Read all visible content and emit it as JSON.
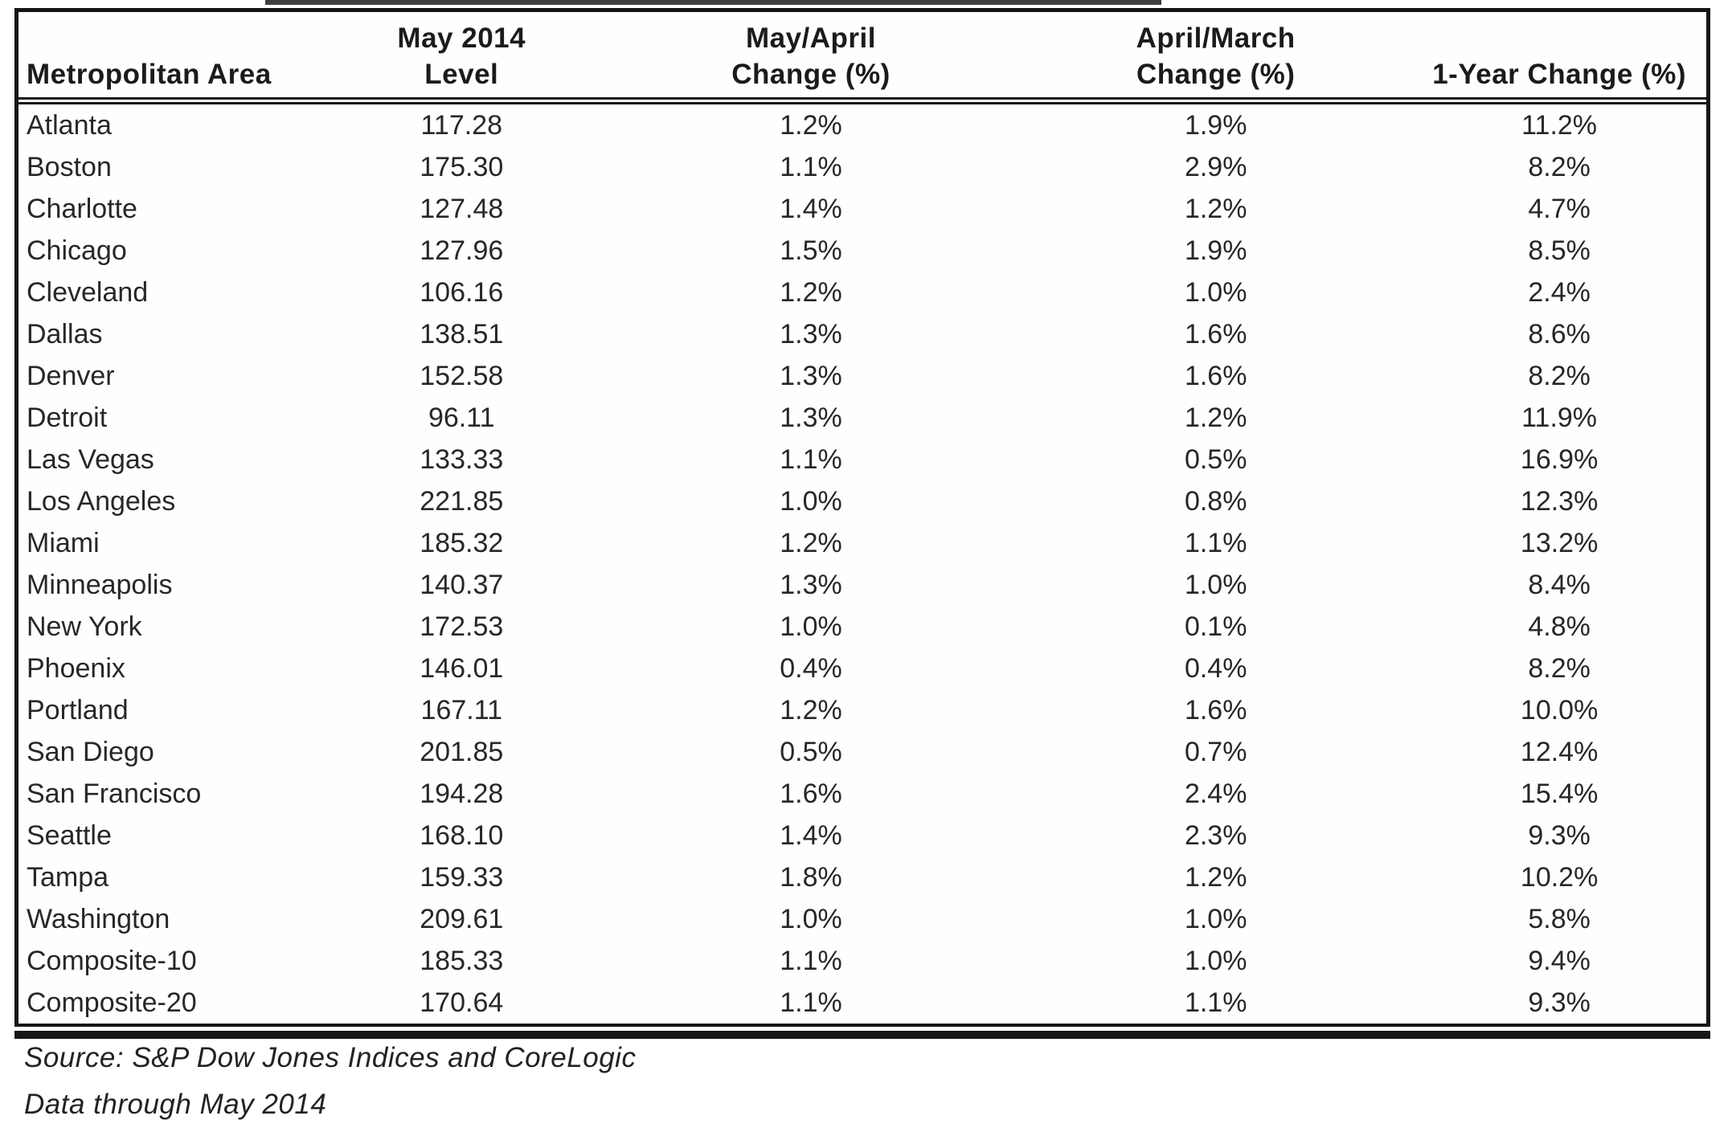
{
  "table": {
    "columns": [
      {
        "id": "metropolitan-area",
        "line1": "Metropolitan Area",
        "line2": ""
      },
      {
        "id": "level",
        "line1": "May 2014",
        "line2": "Level"
      },
      {
        "id": "may-april-change",
        "line1": "May/April",
        "line2": "Change (%)"
      },
      {
        "id": "april-march-change",
        "line1": "April/March",
        "line2": "Change (%)"
      },
      {
        "id": "one-year-change",
        "line1": "1-Year Change (%)",
        "line2": ""
      }
    ],
    "rows": [
      [
        "Atlanta",
        "117.28",
        "1.2%",
        "1.9%",
        "11.2%"
      ],
      [
        "Boston",
        "175.30",
        "1.1%",
        "2.9%",
        "8.2%"
      ],
      [
        "Charlotte",
        "127.48",
        "1.4%",
        "1.2%",
        "4.7%"
      ],
      [
        "Chicago",
        "127.96",
        "1.5%",
        "1.9%",
        "8.5%"
      ],
      [
        "Cleveland",
        "106.16",
        "1.2%",
        "1.0%",
        "2.4%"
      ],
      [
        "Dallas",
        "138.51",
        "1.3%",
        "1.6%",
        "8.6%"
      ],
      [
        "Denver",
        "152.58",
        "1.3%",
        "1.6%",
        "8.2%"
      ],
      [
        "Detroit",
        "96.11",
        "1.3%",
        "1.2%",
        "11.9%"
      ],
      [
        "Las Vegas",
        "133.33",
        "1.1%",
        "0.5%",
        "16.9%"
      ],
      [
        "Los Angeles",
        "221.85",
        "1.0%",
        "0.8%",
        "12.3%"
      ],
      [
        "Miami",
        "185.32",
        "1.2%",
        "1.1%",
        "13.2%"
      ],
      [
        "Minneapolis",
        "140.37",
        "1.3%",
        "1.0%",
        "8.4%"
      ],
      [
        "New York",
        "172.53",
        "1.0%",
        "0.1%",
        "4.8%"
      ],
      [
        "Phoenix",
        "146.01",
        "0.4%",
        "0.4%",
        "8.2%"
      ],
      [
        "Portland",
        "167.11",
        "1.2%",
        "1.6%",
        "10.0%"
      ],
      [
        "San Diego",
        "201.85",
        "0.5%",
        "0.7%",
        "12.4%"
      ],
      [
        "San Francisco",
        "194.28",
        "1.6%",
        "2.4%",
        "15.4%"
      ],
      [
        "Seattle",
        "168.10",
        "1.4%",
        "2.3%",
        "9.3%"
      ],
      [
        "Tampa",
        "159.33",
        "1.8%",
        "1.2%",
        "10.2%"
      ],
      [
        "Washington",
        "209.61",
        "1.0%",
        "1.0%",
        "5.8%"
      ],
      [
        "Composite-10",
        "185.33",
        "1.1%",
        "1.0%",
        "9.4%"
      ],
      [
        "Composite-20",
        "170.64",
        "1.1%",
        "1.1%",
        "9.3%"
      ]
    ]
  },
  "footer": {
    "source": "Source: S&P Dow Jones Indices and CoreLogic",
    "data_through": "Data through May 2014"
  },
  "colors": {
    "border": "#161616",
    "text": "#272727",
    "background": "#ffffff"
  }
}
